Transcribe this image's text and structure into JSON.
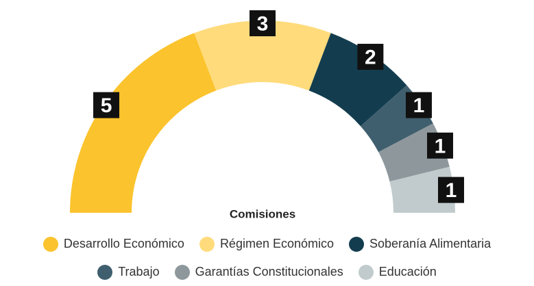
{
  "chart_data": {
    "type": "half-donut",
    "title": "Comisiones",
    "categories": [
      "Desarrollo Económico",
      "Régimen Económico",
      "Soberanía Alimentaria",
      "Trabajo",
      "Garantías Constitucionales",
      "Educación"
    ],
    "values": [
      5,
      3,
      2,
      1,
      1,
      1
    ],
    "colors": [
      "#fbc32d",
      "#ffdb7b",
      "#133d4f",
      "#3f5f6e",
      "#8e989c",
      "#c1cbcd"
    ]
  }
}
